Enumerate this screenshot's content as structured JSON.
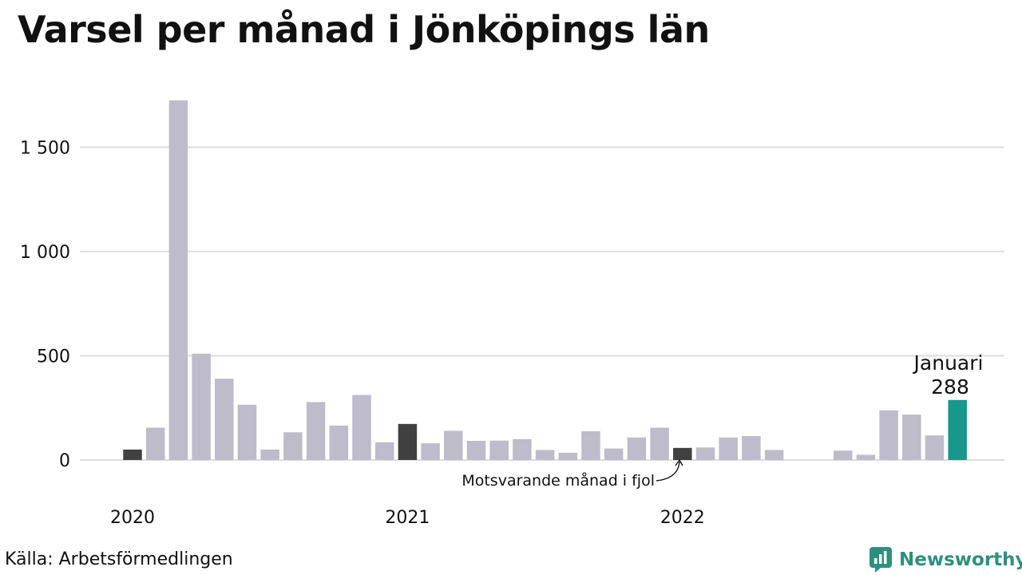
{
  "title": "Varsel per månad i Jönköpings län",
  "source": "Källa: Arbetsförmedlingen",
  "brand": {
    "name": "Newsworthy",
    "icon": "newsworthy-logo-icon",
    "color": "#2f8f7f"
  },
  "chart_data": {
    "type": "bar",
    "title": "Varsel per månad i Jönköpings län",
    "xlabel": "",
    "ylabel": "",
    "ylim": [
      0,
      1800
    ],
    "yticks": [
      0,
      500,
      1000,
      1500
    ],
    "ytick_labels": [
      "0",
      "500",
      "1 000",
      "1 500"
    ],
    "grid": true,
    "x_labels": [
      {
        "index": 0,
        "label": "2020"
      },
      {
        "index": 12,
        "label": "2021"
      },
      {
        "index": 24,
        "label": "2022"
      }
    ],
    "months": [
      "2020-01",
      "2020-02",
      "2020-03",
      "2020-04",
      "2020-05",
      "2020-06",
      "2020-07",
      "2020-08",
      "2020-09",
      "2020-10",
      "2020-11",
      "2020-12",
      "2021-01",
      "2021-02",
      "2021-03",
      "2021-04",
      "2021-05",
      "2021-06",
      "2021-07",
      "2021-08",
      "2021-09",
      "2021-10",
      "2021-11",
      "2021-12",
      "2022-01",
      "2022-02",
      "2022-03",
      "2022-04",
      "2022-05",
      "2022-06",
      "2022-07",
      "2022-08",
      "2022-09",
      "2022-10",
      "2022-11",
      "2022-12",
      "2023-01"
    ],
    "values": [
      50,
      155,
      1725,
      510,
      390,
      265,
      50,
      133,
      278,
      165,
      312,
      85,
      173,
      80,
      140,
      92,
      93,
      100,
      48,
      35,
      138,
      55,
      108,
      155,
      58,
      60,
      108,
      115,
      48,
      null,
      null,
      45,
      25,
      238,
      218,
      118,
      288
    ],
    "highlight_same_month": [
      0,
      12,
      24
    ],
    "current_index": 36,
    "colors": {
      "bar": "#bebcca",
      "same_month": "#404040",
      "current": "#17988a",
      "grid": "#dedede"
    },
    "annotations": {
      "current": {
        "month": "Januari",
        "value": "288"
      },
      "same_month_last_year": "Motsvarande månad i fjol"
    }
  }
}
